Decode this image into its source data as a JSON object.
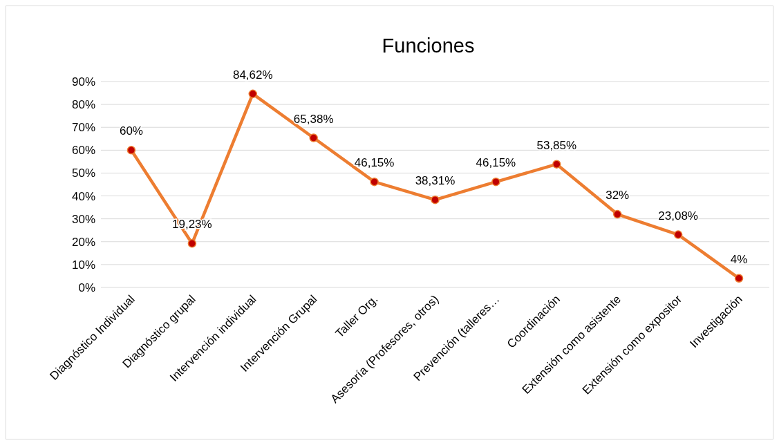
{
  "chart_data": {
    "type": "line",
    "title": "Funciones",
    "categories": [
      "Diagnóstico Individual",
      "Diagnóstico grupal",
      "Intervención individual",
      "Intervención Grupal",
      "Taller Org.",
      "Asesoría (Profesores, otros)",
      "Prevención (talleres…",
      "Coordinación",
      "Extensión como asistente",
      "Extensión como expositor",
      "Investigación"
    ],
    "series": [
      {
        "color": "#ed7d31",
        "values": [
          60,
          19.23,
          84.62,
          65.38,
          46.15,
          38.31,
          46.15,
          53.85,
          32,
          23.08,
          4
        ],
        "value_labels": [
          "60%",
          "19,23%",
          "84,62%",
          "65,38%",
          "46,15%",
          "38,31%",
          "46,15%",
          "53,85%",
          "32%",
          "23,08%",
          "4%"
        ]
      }
    ],
    "ylim": [
      0,
      90
    ],
    "yticks": [
      {
        "value": 0,
        "label": "0%"
      },
      {
        "value": 10,
        "label": "10%"
      },
      {
        "value": 20,
        "label": "20%"
      },
      {
        "value": 30,
        "label": "30%"
      },
      {
        "value": 40,
        "label": "40%"
      },
      {
        "value": 50,
        "label": "50%"
      },
      {
        "value": 60,
        "label": "60%"
      },
      {
        "value": 70,
        "label": "70%"
      },
      {
        "value": 80,
        "label": "80%"
      },
      {
        "value": 90,
        "label": "90%"
      }
    ],
    "grid": "y",
    "marker": "circle",
    "line_style": "solid"
  }
}
